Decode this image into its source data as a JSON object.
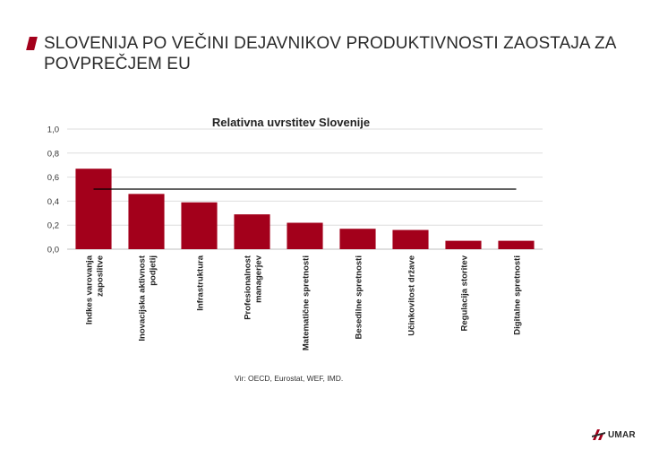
{
  "slide": {
    "title": "SLOVENIJA PO VEČINI DEJAVNIKOV PRODUKTIVNOSTI ZAOSTAJA ZA POVPREČJEM EU",
    "source": "Vir: OECD, Eurostat, WEF, IMD.",
    "logo_text": "UMAR",
    "accent_color": "#a3001b"
  },
  "chart_data": {
    "type": "bar",
    "title": "Relativna uvrstitev Slovenije",
    "xlabel": "",
    "ylabel": "",
    "ylim": [
      0,
      1.0
    ],
    "yticks": [
      "0,0",
      "0,2",
      "0,4",
      "0,6",
      "0,8",
      "1,0"
    ],
    "grid": true,
    "bar_color": "#a3001b",
    "reference_line": 0.5,
    "categories": [
      [
        "Indkes varovanja",
        "zaposlitve"
      ],
      [
        "Inovacijska aktivnost",
        "podjetij"
      ],
      [
        "Infrastruktura"
      ],
      [
        "Profesionalnost",
        "managerjev"
      ],
      [
        "Matematične spretnosti"
      ],
      [
        "Besedilne spretnosti"
      ],
      [
        "Učinkovitost države"
      ],
      [
        "Regulacija storitev"
      ],
      [
        "Digitalne spretnosti"
      ]
    ],
    "values": [
      0.67,
      0.46,
      0.39,
      0.29,
      0.22,
      0.17,
      0.16,
      0.07,
      0.07
    ]
  }
}
